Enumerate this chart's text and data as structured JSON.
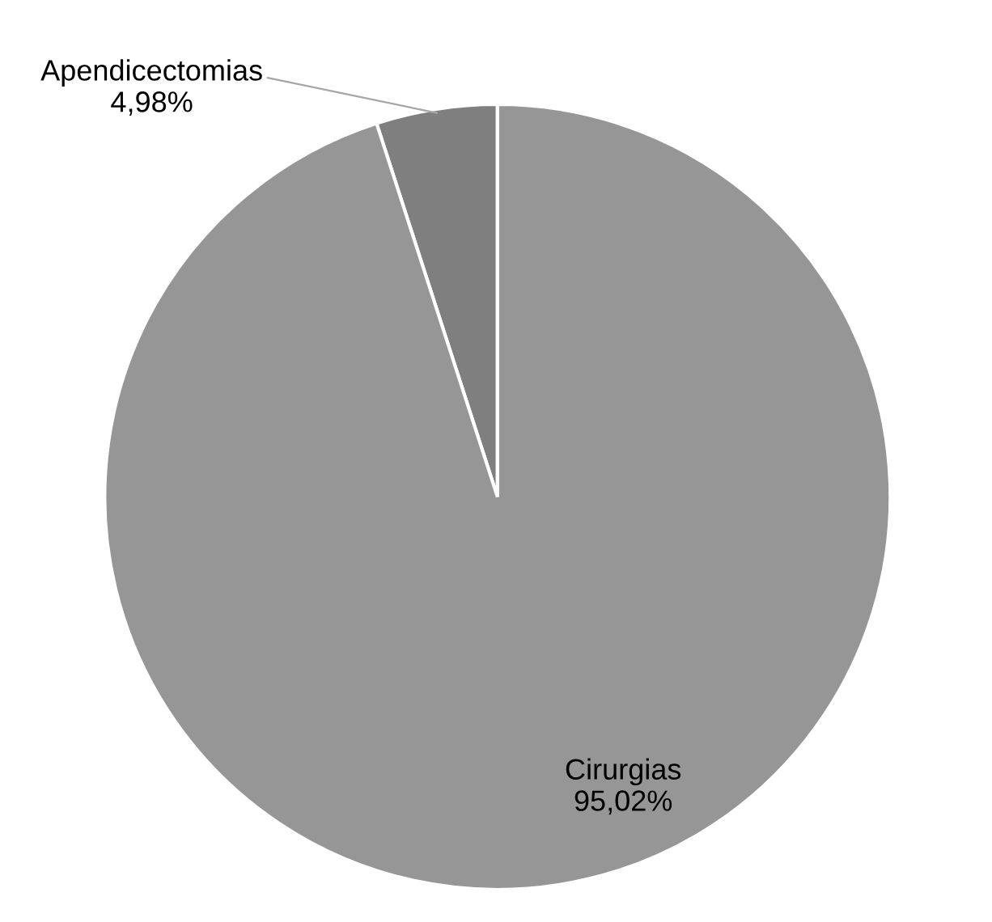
{
  "chart_data": {
    "type": "pie",
    "categories": [
      "Apendicectomias",
      "Cirurgias"
    ],
    "values": [
      4.98,
      95.02
    ],
    "colors": [
      "#7f7f7f",
      "#969696"
    ],
    "value_labels": [
      "4,98%",
      "95,02%"
    ]
  }
}
